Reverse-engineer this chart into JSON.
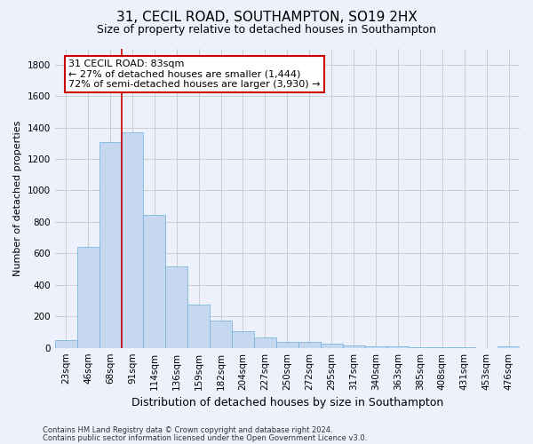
{
  "title1": "31, CECIL ROAD, SOUTHAMPTON, SO19 2HX",
  "title2": "Size of property relative to detached houses in Southampton",
  "xlabel": "Distribution of detached houses by size in Southampton",
  "ylabel": "Number of detached properties",
  "categories": [
    "23sqm",
    "46sqm",
    "68sqm",
    "91sqm",
    "114sqm",
    "136sqm",
    "159sqm",
    "182sqm",
    "204sqm",
    "227sqm",
    "250sqm",
    "272sqm",
    "295sqm",
    "317sqm",
    "340sqm",
    "363sqm",
    "385sqm",
    "408sqm",
    "431sqm",
    "453sqm",
    "476sqm"
  ],
  "values": [
    50,
    640,
    1305,
    1370,
    845,
    520,
    275,
    175,
    105,
    65,
    38,
    35,
    28,
    15,
    10,
    8,
    5,
    3,
    2,
    1,
    12
  ],
  "bar_color": "#c5d8f0",
  "bar_edgecolor": "#6aaed6",
  "vline_color": "#cc0000",
  "annotation_text": "31 CECIL ROAD: 83sqm\n← 27% of detached houses are smaller (1,444)\n72% of semi-detached houses are larger (3,930) →",
  "annotation_box_facecolor": "#ffffff",
  "annotation_box_edgecolor": "#cc0000",
  "ylim": [
    0,
    1900
  ],
  "yticks": [
    0,
    200,
    400,
    600,
    800,
    1000,
    1200,
    1400,
    1600,
    1800
  ],
  "bg_color": "#edf1fb",
  "plot_bg_color": "#edf1fb",
  "footer1": "Contains HM Land Registry data © Crown copyright and database right 2024.",
  "footer2": "Contains public sector information licensed under the Open Government Licence v3.0.",
  "title1_fontsize": 11,
  "title2_fontsize": 9,
  "xlabel_fontsize": 9,
  "ylabel_fontsize": 8,
  "tick_fontsize": 7.5,
  "footer_fontsize": 6,
  "ann_fontsize": 8
}
